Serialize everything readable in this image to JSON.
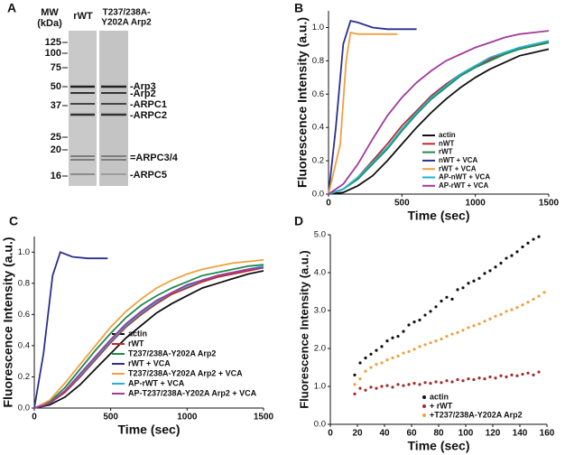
{
  "gel": {
    "panel_label": "A",
    "mw_header": [
      "MW",
      "(kDa)"
    ],
    "lanes": [
      [
        "rWT"
      ],
      [
        "T237/238A-",
        "Y202A Arp2"
      ]
    ],
    "markers": [
      125,
      100,
      75,
      50,
      37,
      25,
      20,
      16
    ],
    "bands": [
      "-Arp3",
      "-Arp2",
      "-ARPC1",
      "-ARPC2",
      "=ARPC3/4",
      "-ARPC5"
    ]
  },
  "chart_data": [
    {
      "type": "line",
      "panel_label": "B",
      "x_label": "Time (sec)",
      "y_label": "Fluorescence Intensity (a.u.)",
      "xlim": [
        0,
        1500
      ],
      "xticks": [
        0,
        500,
        1000,
        1500
      ],
      "ylim": [
        0,
        1.1
      ],
      "yticks": [
        {
          "value": 0,
          "label": "0.0"
        },
        0.2,
        0.4,
        0.6,
        0.8,
        {
          "value": 1,
          "label": "1.0"
        }
      ],
      "series": [
        {
          "name": "actin",
          "color": "#111111",
          "x": [
            0,
            100,
            200,
            300,
            400,
            500,
            600,
            700,
            800,
            900,
            1000,
            1100,
            1200,
            1300,
            1400,
            1500
          ],
          "values": [
            0,
            0.01,
            0.05,
            0.11,
            0.2,
            0.3,
            0.4,
            0.49,
            0.57,
            0.64,
            0.7,
            0.75,
            0.79,
            0.83,
            0.85,
            0.87
          ]
        },
        {
          "name": "nWT",
          "color": "#c0282d",
          "x": [
            0,
            100,
            200,
            300,
            400,
            500,
            600,
            700,
            800,
            900,
            1000,
            1100,
            1200,
            1300,
            1400,
            1500
          ],
          "values": [
            0,
            0.03,
            0.1,
            0.2,
            0.3,
            0.41,
            0.5,
            0.59,
            0.66,
            0.72,
            0.77,
            0.81,
            0.85,
            0.87,
            0.89,
            0.91
          ]
        },
        {
          "name": "rWT",
          "color": "#1f8a4c",
          "x": [
            0,
            100,
            200,
            300,
            400,
            500,
            600,
            700,
            800,
            900,
            1000,
            1100,
            1200,
            1300,
            1400,
            1500
          ],
          "values": [
            0,
            0.03,
            0.09,
            0.18,
            0.27,
            0.38,
            0.48,
            0.57,
            0.64,
            0.71,
            0.76,
            0.8,
            0.84,
            0.87,
            0.89,
            0.91
          ]
        },
        {
          "name": "nWT + VCA",
          "color": "#2b2f8f",
          "x": [
            0,
            50,
            100,
            150,
            200,
            300,
            400,
            500,
            600
          ],
          "values": [
            0,
            0.4,
            0.9,
            1.04,
            1.03,
            1,
            0.99,
            0.99,
            0.99
          ]
        },
        {
          "name": "rWT + VCA",
          "color": "#f0a040",
          "x": [
            0,
            80,
            120,
            150,
            200,
            300,
            400,
            470
          ],
          "values": [
            0,
            0.3,
            0.8,
            0.97,
            0.96,
            0.96,
            0.96,
            0.96
          ]
        },
        {
          "name": "AP-nWT + VCA",
          "color": "#1fb3d0",
          "x": [
            0,
            100,
            200,
            300,
            400,
            500,
            600,
            700,
            800,
            900,
            1000,
            1100,
            1200,
            1300,
            1400,
            1500
          ],
          "values": [
            0,
            0.03,
            0.1,
            0.19,
            0.28,
            0.39,
            0.49,
            0.58,
            0.65,
            0.72,
            0.77,
            0.82,
            0.85,
            0.88,
            0.9,
            0.92
          ]
        },
        {
          "name": "AP-rWT + VCA",
          "color": "#a03a9a",
          "x": [
            0,
            100,
            200,
            300,
            400,
            500,
            600,
            700,
            800,
            900,
            1000,
            1100,
            1200,
            1300,
            1400,
            1500
          ],
          "values": [
            0,
            0.06,
            0.18,
            0.33,
            0.47,
            0.58,
            0.67,
            0.74,
            0.8,
            0.84,
            0.88,
            0.91,
            0.94,
            0.96,
            0.97,
            0.98
          ]
        }
      ]
    },
    {
      "type": "line",
      "panel_label": "C",
      "x_label": "Time (sec)",
      "y_label": "Fluorescence Intensity (a.u.)",
      "xlim": [
        0,
        1500
      ],
      "xticks": [
        0,
        500,
        1000,
        1500
      ],
      "ylim": [
        0,
        1.1
      ],
      "yticks": [
        {
          "value": 0,
          "label": "0.0"
        },
        0.2,
        0.4,
        0.6,
        0.8,
        {
          "value": 1,
          "label": "1.0"
        }
      ],
      "series": [
        {
          "name": "actin",
          "color": "#111111",
          "x": [
            0,
            100,
            200,
            300,
            400,
            500,
            600,
            700,
            800,
            900,
            1000,
            1100,
            1200,
            1300,
            1400,
            1500
          ],
          "values": [
            0,
            0.02,
            0.07,
            0.15,
            0.25,
            0.35,
            0.45,
            0.53,
            0.61,
            0.67,
            0.72,
            0.77,
            0.8,
            0.83,
            0.86,
            0.88
          ]
        },
        {
          "name": "rWT",
          "color": "#c0282d",
          "x": [
            0,
            100,
            200,
            300,
            400,
            500,
            600,
            700,
            800,
            900,
            1000,
            1100,
            1200,
            1300,
            1400,
            1500
          ],
          "values": [
            0,
            0.03,
            0.1,
            0.2,
            0.31,
            0.42,
            0.52,
            0.6,
            0.67,
            0.73,
            0.77,
            0.81,
            0.84,
            0.86,
            0.88,
            0.9
          ]
        },
        {
          "name": "T237/238A-Y202A Arp2",
          "color": "#1f8a4c",
          "x": [
            0,
            100,
            200,
            300,
            400,
            500,
            600,
            700,
            800,
            900,
            1000,
            1100,
            1200,
            1300,
            1400,
            1500
          ],
          "values": [
            0,
            0.04,
            0.13,
            0.25,
            0.37,
            0.48,
            0.58,
            0.66,
            0.72,
            0.77,
            0.81,
            0.85,
            0.87,
            0.89,
            0.91,
            0.92
          ]
        },
        {
          "name": "rWT + VCA",
          "color": "#2b2f8f",
          "x": [
            0,
            60,
            120,
            170,
            250,
            350,
            480
          ],
          "values": [
            0,
            0.35,
            0.85,
            1,
            0.97,
            0.96,
            0.96
          ]
        },
        {
          "name": "T237/238A-Y202A Arp2 + VCA",
          "color": "#f0a040",
          "x": [
            0,
            100,
            200,
            300,
            400,
            500,
            600,
            700,
            800,
            900,
            1000,
            1100,
            1200,
            1300,
            1400,
            1500
          ],
          "values": [
            0,
            0.05,
            0.16,
            0.28,
            0.4,
            0.52,
            0.62,
            0.7,
            0.77,
            0.82,
            0.86,
            0.89,
            0.91,
            0.93,
            0.94,
            0.95
          ]
        },
        {
          "name": "AP-rWT + VCA",
          "color": "#1fb3d0",
          "x": [
            0,
            100,
            200,
            300,
            400,
            500,
            600,
            700,
            800,
            900,
            1000,
            1100,
            1200,
            1300,
            1400,
            1500
          ],
          "values": [
            0,
            0.03,
            0.11,
            0.21,
            0.32,
            0.43,
            0.53,
            0.61,
            0.68,
            0.74,
            0.78,
            0.82,
            0.85,
            0.87,
            0.89,
            0.91
          ]
        },
        {
          "name": "AP-T237/238A-Y202A Arp2 + VCA",
          "color": "#a03a9a",
          "x": [
            0,
            100,
            200,
            300,
            400,
            500,
            600,
            700,
            800,
            900,
            1000,
            1100,
            1200,
            1300,
            1400,
            1500
          ],
          "values": [
            0,
            0.03,
            0.11,
            0.22,
            0.33,
            0.44,
            0.54,
            0.62,
            0.69,
            0.74,
            0.79,
            0.82,
            0.85,
            0.87,
            0.89,
            0.9
          ]
        }
      ]
    },
    {
      "type": "scatter",
      "panel_label": "D",
      "x_label": "Time (sec)",
      "y_label": "Fluorescence Intensity (a.u.)",
      "xlim": [
        0,
        160
      ],
      "xticks": [
        0,
        20,
        40,
        60,
        80,
        100,
        120,
        140,
        160
      ],
      "ylim": [
        0,
        5
      ],
      "yticks": [
        {
          "value": 0,
          "label": "0.0"
        },
        {
          "value": 1,
          "label": "1.0"
        },
        {
          "value": 2,
          "label": "2.0"
        },
        {
          "value": 3,
          "label": "3.0"
        },
        {
          "value": 4,
          "label": "4.0"
        },
        {
          "value": 5,
          "label": "5.0"
        }
      ],
      "series": [
        {
          "name": "actin",
          "color": "#111111",
          "x": [
            18,
            22,
            26,
            30,
            34,
            38,
            42,
            46,
            50,
            54,
            58,
            62,
            66,
            70,
            74,
            78,
            82,
            86,
            90,
            94,
            98,
            102,
            106,
            110,
            114,
            118,
            122,
            126,
            130,
            134,
            138,
            142,
            146,
            150,
            154
          ],
          "values": [
            1.3,
            1.62,
            1.75,
            1.85,
            1.95,
            2.05,
            2.2,
            2.28,
            2.32,
            2.45,
            2.62,
            2.7,
            2.75,
            2.88,
            2.98,
            3.1,
            3.25,
            3.35,
            3.3,
            3.55,
            3.6,
            3.72,
            3.78,
            3.85,
            3.98,
            4.05,
            4.15,
            4.25,
            4.38,
            4.45,
            4.55,
            4.68,
            4.78,
            4.88,
            4.95
          ]
        },
        {
          "name": "+ rWT",
          "color": "#a52a2a",
          "x": [
            18,
            22,
            26,
            30,
            34,
            38,
            42,
            46,
            50,
            54,
            58,
            62,
            66,
            70,
            74,
            78,
            82,
            86,
            90,
            94,
            98,
            102,
            106,
            110,
            114,
            118,
            122,
            126,
            130,
            134,
            138,
            142,
            146,
            150,
            154
          ],
          "values": [
            0.8,
            0.95,
            0.9,
            0.98,
            0.95,
            1,
            1.02,
            0.98,
            1.05,
            1.02,
            1.05,
            1.08,
            1.05,
            1.1,
            1.08,
            1.12,
            1.1,
            1.15,
            1.12,
            1.18,
            1.15,
            1.2,
            1.18,
            1.22,
            1.2,
            1.25,
            1.22,
            1.28,
            1.25,
            1.3,
            1.28,
            1.32,
            1.35,
            1.3,
            1.38
          ]
        },
        {
          "name": "+T237/238A-Y202A Arp2",
          "color": "#f0a040",
          "x": [
            18,
            22,
            26,
            30,
            34,
            38,
            42,
            46,
            50,
            54,
            58,
            62,
            66,
            70,
            74,
            78,
            82,
            86,
            90,
            94,
            98,
            102,
            106,
            110,
            114,
            118,
            122,
            126,
            130,
            134,
            138,
            142,
            146,
            150,
            154,
            158
          ],
          "values": [
            1.05,
            1.2,
            1.4,
            1.5,
            1.58,
            1.62,
            1.7,
            1.75,
            1.8,
            1.88,
            1.92,
            1.98,
            2.05,
            2.1,
            2.15,
            2.2,
            2.25,
            2.32,
            2.38,
            2.42,
            2.48,
            2.55,
            2.6,
            2.65,
            2.72,
            2.78,
            2.85,
            2.9,
            2.98,
            3.02,
            3.08,
            3.15,
            3.22,
            3.3,
            3.38,
            3.48
          ]
        }
      ]
    }
  ]
}
